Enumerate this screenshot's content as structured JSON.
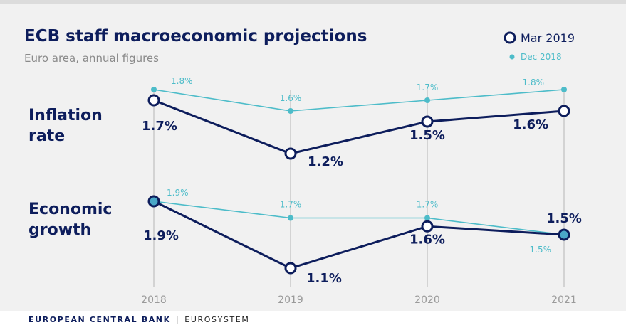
{
  "chart_data": {
    "type": "line",
    "title": "ECB staff macroeconomic projections",
    "subtitle": "Euro area, annual figures",
    "categories": [
      "2018",
      "2019",
      "2020",
      "2021"
    ],
    "legend": {
      "placement": "top-right",
      "entries": [
        "Mar 2019",
        "Dec 2018"
      ]
    },
    "panels": [
      {
        "label": "Inflation rate",
        "series": [
          {
            "name": "Mar 2019",
            "values": [
              1.7,
              1.2,
              1.5,
              1.6
            ],
            "labels": [
              "1.7%",
              "1.2%",
              "1.5%",
              "1.6%"
            ]
          },
          {
            "name": "Dec 2018",
            "values": [
              1.8,
              1.6,
              1.7,
              1.8
            ],
            "labels": [
              "1.8%",
              "1.6%",
              "1.7%",
              "1.8%"
            ]
          }
        ]
      },
      {
        "label": "Economic growth",
        "series": [
          {
            "name": "Mar 2019",
            "values": [
              1.9,
              1.1,
              1.6,
              1.5
            ],
            "labels": [
              "1.9%",
              "1.1%",
              "1.6%",
              "1.5%"
            ]
          },
          {
            "name": "Dec 2018",
            "values": [
              1.9,
              1.7,
              1.7,
              1.5
            ],
            "labels": [
              "1.9%",
              "1.7%",
              "1.7%",
              "1.5%"
            ]
          }
        ]
      }
    ],
    "colors": {
      "mar2019": "#0d1d5c",
      "dec2018": "#4dbcc9",
      "fill_overlap": "#4aa8c8",
      "gridline": "#b5b5b5"
    }
  },
  "panel_labels": [
    [
      "Inflation",
      "rate"
    ],
    [
      "Economic",
      "growth"
    ]
  ],
  "footer": {
    "bank": "EUROPEAN CENTRAL BANK",
    "separator": "|",
    "system": "EUROSYSTEM"
  }
}
